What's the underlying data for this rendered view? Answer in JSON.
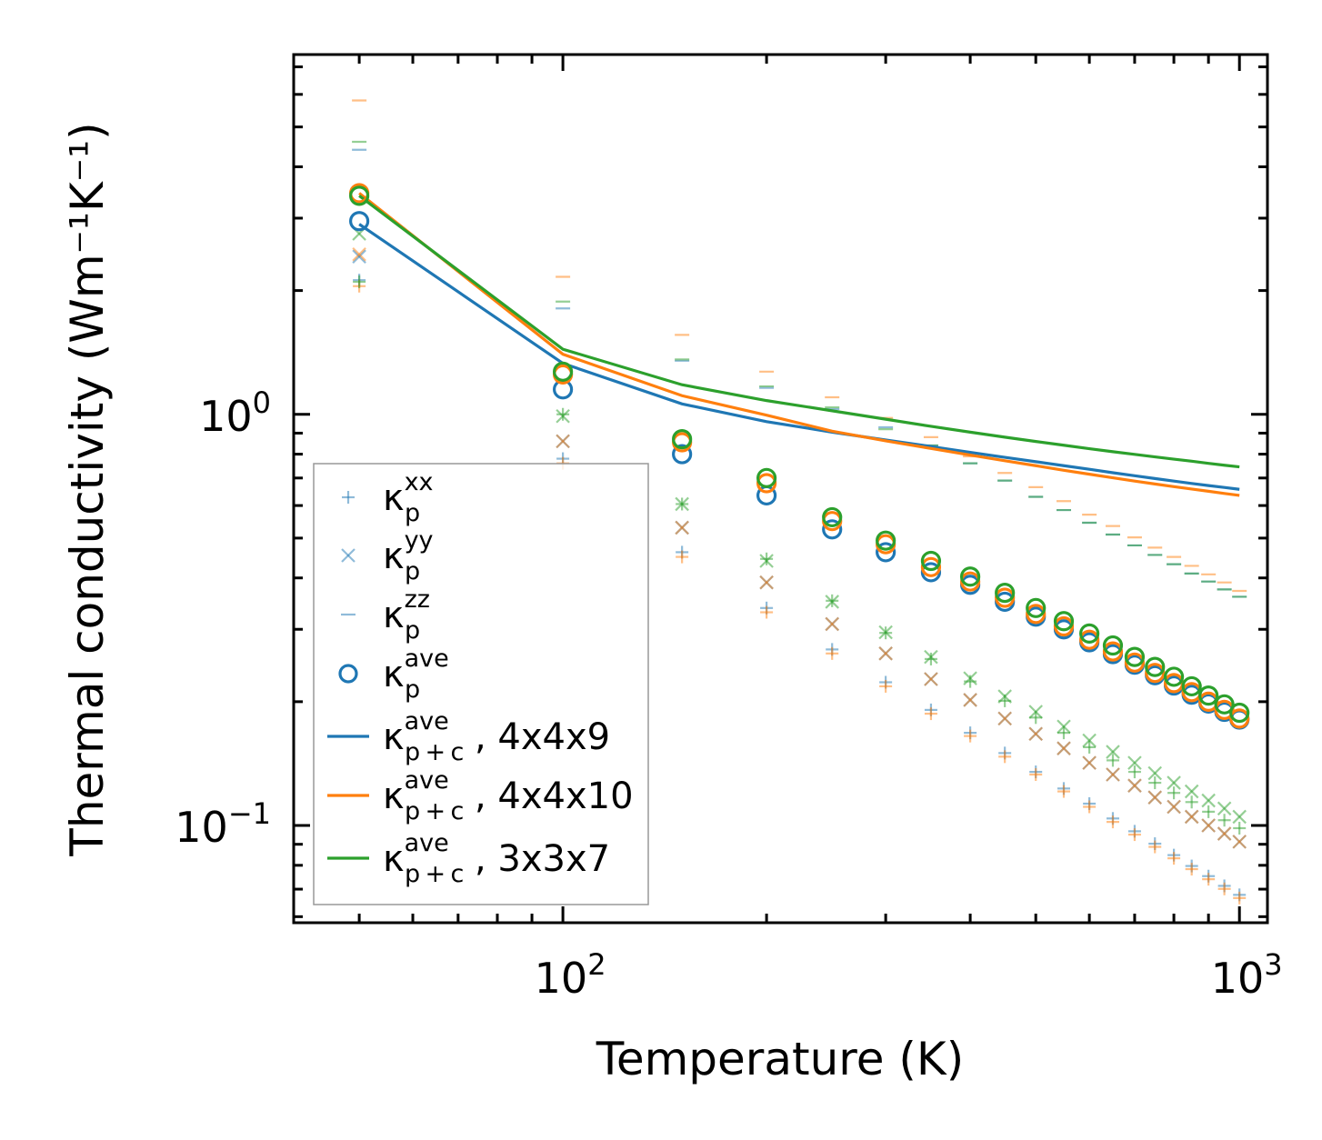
{
  "chart_data": {
    "type": "scatter",
    "xscale": "log",
    "yscale": "log",
    "xlabel": "Temperature (K)",
    "ylabel": "Thermal conductivity (Wm⁻¹K⁻¹)",
    "xlim": [
      40,
      1100
    ],
    "ylim": [
      0.058,
      7.5
    ],
    "x_ticks": [
      {
        "base": "10",
        "exp": "2",
        "value": 100
      },
      {
        "base": "10",
        "exp": "3",
        "value": 1000
      }
    ],
    "y_ticks": [
      {
        "base": "10",
        "exp": "−1",
        "value": 0.1
      },
      {
        "base": "10",
        "exp": "0",
        "value": 1
      }
    ],
    "legend_location": "lower-left",
    "x": [
      50,
      100,
      150,
      200,
      250,
      300,
      350,
      400,
      450,
      500,
      550,
      600,
      650,
      700,
      750,
      800,
      850,
      900,
      950,
      1000
    ],
    "series": [
      {
        "name": "4x4x9",
        "color": "#1f77b4",
        "kxx": [
          2.12,
          0.78,
          0.462,
          0.338,
          0.268,
          0.223,
          0.191,
          0.168,
          0.15,
          0.135,
          0.123,
          0.113,
          0.104,
          0.0968,
          0.0903,
          0.0847,
          0.0797,
          0.0753,
          0.0713,
          0.0678
        ],
        "kyy": [
          2.42,
          0.86,
          0.53,
          0.39,
          0.309,
          0.262,
          0.227,
          0.202,
          0.182,
          0.167,
          0.154,
          0.142,
          0.133,
          0.125,
          0.117,
          0.111,
          0.105,
          0.1,
          0.0955,
          0.0913
        ],
        "kzz": [
          4.4,
          1.81,
          1.35,
          1.16,
          1.03,
          0.93,
          0.84,
          0.76,
          0.69,
          0.63,
          0.585,
          0.545,
          0.51,
          0.48,
          0.455,
          0.432,
          0.41,
          0.392,
          0.375,
          0.36
        ],
        "kave": [
          2.95,
          1.15,
          0.8,
          0.635,
          0.525,
          0.462,
          0.413,
          0.385,
          0.35,
          0.322,
          0.3,
          0.279,
          0.261,
          0.246,
          0.232,
          0.219,
          0.208,
          0.198,
          0.189,
          0.181
        ],
        "kpc": {
          "x": [
            50,
            100,
            150,
            200,
            250,
            300,
            350,
            400,
            450,
            500,
            550,
            600,
            650,
            700,
            750,
            800,
            850,
            900,
            950,
            1000
          ],
          "y": [
            2.9,
            1.33,
            1.06,
            0.96,
            0.905,
            0.866,
            0.835,
            0.808,
            0.786,
            0.767,
            0.75,
            0.735,
            0.721,
            0.709,
            0.698,
            0.688,
            0.679,
            0.671,
            0.664,
            0.657
          ]
        }
      },
      {
        "name": "4x4x10",
        "color": "#ff7f0e",
        "kxx": [
          2.05,
          0.76,
          0.45,
          0.33,
          0.262,
          0.218,
          0.187,
          0.165,
          0.147,
          0.133,
          0.121,
          0.111,
          0.102,
          0.095,
          0.0887,
          0.0832,
          0.0783,
          0.074,
          0.0701,
          0.0666
        ],
        "kyy": [
          2.45,
          0.86,
          0.53,
          0.39,
          0.309,
          0.262,
          0.227,
          0.202,
          0.182,
          0.167,
          0.154,
          0.142,
          0.133,
          0.125,
          0.117,
          0.111,
          0.105,
          0.1,
          0.0955,
          0.0913
        ],
        "kzz": [
          5.8,
          2.16,
          1.56,
          1.27,
          1.1,
          0.98,
          0.88,
          0.79,
          0.72,
          0.665,
          0.615,
          0.57,
          0.535,
          0.502,
          0.474,
          0.45,
          0.428,
          0.408,
          0.39,
          0.372
        ],
        "kave": [
          3.45,
          1.25,
          0.855,
          0.68,
          0.55,
          0.483,
          0.425,
          0.392,
          0.358,
          0.327,
          0.305,
          0.283,
          0.265,
          0.249,
          0.235,
          0.222,
          0.211,
          0.2,
          0.191,
          0.182
        ],
        "kpc": {
          "x": [
            50,
            100,
            150,
            200,
            250,
            300,
            350,
            400,
            450,
            500,
            550,
            600,
            650,
            700,
            750,
            800,
            850,
            900,
            950,
            1000
          ],
          "y": [
            3.45,
            1.4,
            1.11,
            0.995,
            0.91,
            0.862,
            0.826,
            0.796,
            0.771,
            0.75,
            0.731,
            0.715,
            0.701,
            0.688,
            0.677,
            0.667,
            0.658,
            0.65,
            0.642,
            0.635
          ]
        }
      },
      {
        "name": "3x3x7",
        "color": "#2ca02c",
        "kxx": [
          2.1,
          1.0,
          0.605,
          0.445,
          0.352,
          0.294,
          0.254,
          0.224,
          0.201,
          0.183,
          0.168,
          0.155,
          0.144,
          0.135,
          0.127,
          0.12,
          0.114,
          0.108,
          0.103,
          0.0985
        ],
        "kyy": [
          2.75,
          0.99,
          0.605,
          0.44,
          0.35,
          0.295,
          0.257,
          0.228,
          0.206,
          0.189,
          0.174,
          0.161,
          0.151,
          0.142,
          0.134,
          0.127,
          0.121,
          0.115,
          0.11,
          0.105
        ],
        "kzz": [
          4.6,
          1.88,
          1.36,
          1.17,
          1.04,
          0.92,
          0.84,
          0.76,
          0.69,
          0.63,
          0.585,
          0.545,
          0.51,
          0.48,
          0.455,
          0.432,
          0.41,
          0.392,
          0.375,
          0.36
        ],
        "kave": [
          3.4,
          1.27,
          0.87,
          0.7,
          0.562,
          0.493,
          0.44,
          0.403,
          0.368,
          0.338,
          0.314,
          0.293,
          0.274,
          0.257,
          0.243,
          0.23,
          0.218,
          0.207,
          0.197,
          0.188
        ],
        "kpc": {
          "x": [
            50,
            100,
            150,
            200,
            250,
            300,
            350,
            400,
            450,
            500,
            550,
            600,
            650,
            700,
            750,
            800,
            850,
            900,
            950,
            1000
          ],
          "y": [
            3.4,
            1.44,
            1.18,
            1.08,
            1.02,
            0.973,
            0.935,
            0.905,
            0.88,
            0.859,
            0.841,
            0.825,
            0.811,
            0.799,
            0.788,
            0.778,
            0.769,
            0.76,
            0.752,
            0.745
          ]
        }
      }
    ],
    "legend": [
      {
        "kind": "plus",
        "color": "#1f77b4",
        "alpha": 0.5,
        "sub": "p",
        "sup": "xx",
        "suffix": ""
      },
      {
        "kind": "x",
        "color": "#1f77b4",
        "alpha": 0.5,
        "sub": "p",
        "sup": "yy",
        "suffix": ""
      },
      {
        "kind": "dash",
        "color": "#1f77b4",
        "alpha": 0.5,
        "sub": "p",
        "sup": "zz",
        "suffix": ""
      },
      {
        "kind": "circle",
        "color": "#1f77b4",
        "alpha": 1,
        "sub": "p",
        "sup": "ave",
        "suffix": ""
      },
      {
        "kind": "line",
        "color": "#1f77b4",
        "alpha": 1,
        "sub": "p + c",
        "sup": "ave",
        "suffix": ", 4x4x9"
      },
      {
        "kind": "line",
        "color": "#ff7f0e",
        "alpha": 1,
        "sub": "p + c",
        "sup": "ave",
        "suffix": ", 4x4x10"
      },
      {
        "kind": "line",
        "color": "#2ca02c",
        "alpha": 1,
        "sub": "p + c",
        "sup": "ave",
        "suffix": ", 3x3x7"
      }
    ],
    "legend_symbol": "κ"
  }
}
